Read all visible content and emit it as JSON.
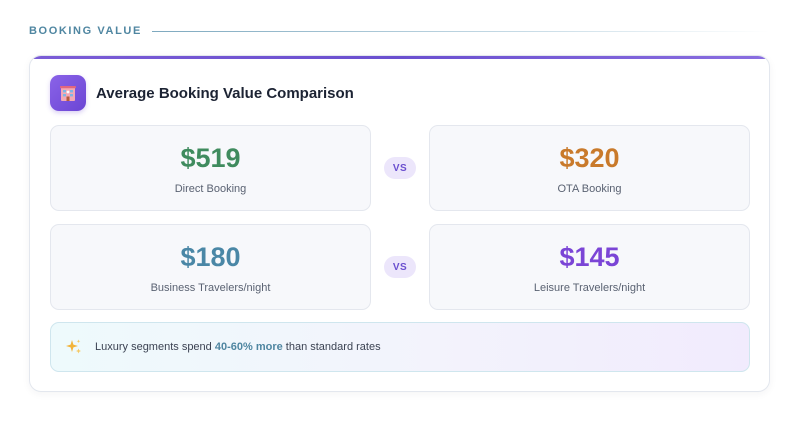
{
  "section": {
    "label": "BOOKING VALUE"
  },
  "card": {
    "title": "Average Booking Value Comparison",
    "icon": "hotel-icon"
  },
  "comparisons": [
    {
      "left": {
        "value": "$519",
        "label": "Direct Booking",
        "color": "#3f8b5e"
      },
      "vs": "VS",
      "right": {
        "value": "$320",
        "label": "OTA Booking",
        "color": "#c97a2b"
      }
    },
    {
      "left": {
        "value": "$180",
        "label": "Business Travelers/night",
        "color": "#4a87a6"
      },
      "vs": "VS",
      "right": {
        "value": "$145",
        "label": "Leisure Travelers/night",
        "color": "#7b45d6"
      }
    }
  ],
  "insight": {
    "icon": "sparkles-icon",
    "prefix": "Luxury segments spend ",
    "highlight": "40-60% more",
    "suffix": " than standard rates"
  },
  "colors": {
    "accent": "#6a4fcf",
    "highlight": "#4f86a1"
  }
}
